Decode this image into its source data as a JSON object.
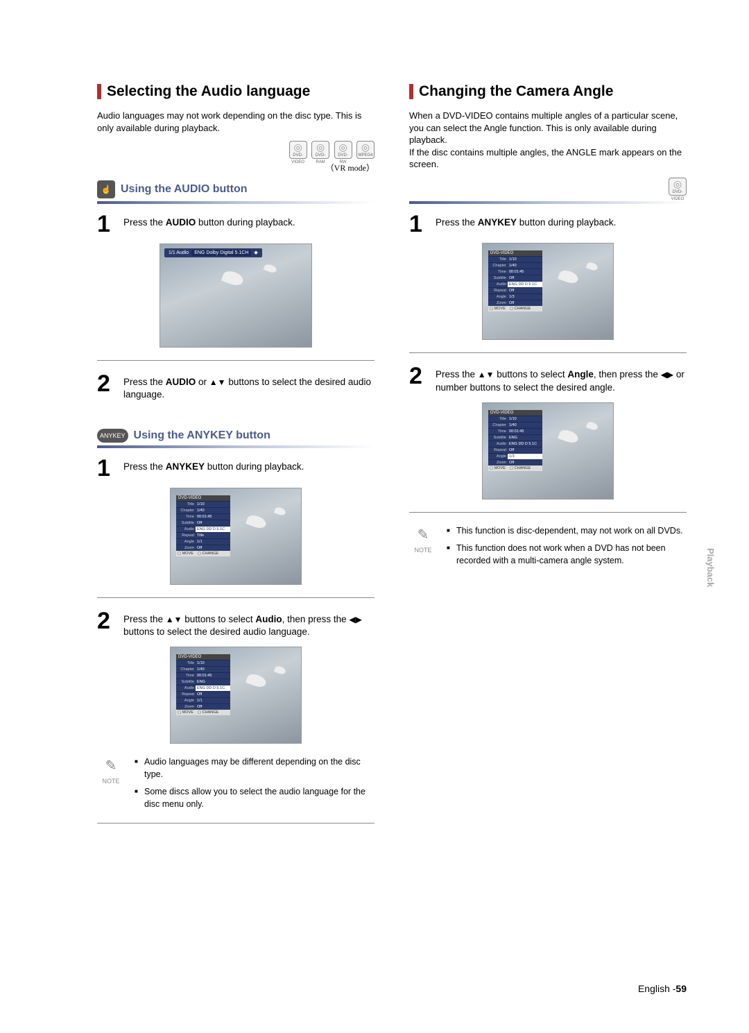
{
  "left": {
    "title": "Selecting the Audio language",
    "intro": "Audio languages may not work depending on the disc type. This is only available during playback.",
    "disc_icons": [
      "DVD-VIDEO",
      "DVD-RAM",
      "DVD-RW",
      "MPEG4"
    ],
    "vr_mode": "（VR mode）",
    "section1": {
      "badge_glyph": "☝",
      "heading": "Using the AUDIO button",
      "step1_pre": "Press the ",
      "step1_b": "AUDIO",
      "step1_post": " button during playback.",
      "osd": "ENG Dolby Digital 5.1CH",
      "osd_pre": "1/1 Audio",
      "step2_pre": "Press the ",
      "step2_b1": "AUDIO",
      "step2_mid": " or ",
      "step2_arrows": "▲▼",
      "step2_post": " buttons to select the desired audio language."
    },
    "section2": {
      "badge": "ANYKEY",
      "heading": "Using the ANYKEY button",
      "step1_pre": "Press the ",
      "step1_b": "ANYKEY",
      "step1_post": " button during playback.",
      "menu": {
        "title": "DVD-VIDEO",
        "rows": [
          {
            "lbl": "Title",
            "val": "1/10"
          },
          {
            "lbl": "Chapter",
            "val": "1/40"
          },
          {
            "lbl": "Time",
            "val": "00:01:45"
          },
          {
            "lbl": "Subtitle",
            "val": "Off"
          },
          {
            "lbl": "Audio",
            "val": "ENG DD D 5.1C",
            "sel": true
          },
          {
            "lbl": "Repeat",
            "val": "Title"
          },
          {
            "lbl": "Angle",
            "val": "1/1"
          },
          {
            "lbl": "Zoom",
            "val": "Off"
          }
        ],
        "footer_move": "MOVE",
        "footer_change": "CHANGE"
      },
      "step2_a": "Press the ",
      "step2_arrows1": "▲▼",
      "step2_b": " buttons to select ",
      "step2_bold": "Audio",
      "step2_c": ", then press the ",
      "step2_arrows2": "◀▶",
      "step2_d": " buttons to select the desired audio language.",
      "menu2": {
        "title": "DVD-VIDEO",
        "rows": [
          {
            "lbl": "Title",
            "val": "1/10"
          },
          {
            "lbl": "Chapter",
            "val": "1/40"
          },
          {
            "lbl": "Time",
            "val": "00:01:45"
          },
          {
            "lbl": "Subtitle",
            "val": "ENG"
          },
          {
            "lbl": "Audio",
            "val": "ENG DD D 5.1C",
            "sel": true
          },
          {
            "lbl": "Repeat",
            "val": "Off"
          },
          {
            "lbl": "Angle",
            "val": "1/1"
          },
          {
            "lbl": "Zoom",
            "val": "Off"
          }
        ],
        "footer_move": "MOVE",
        "footer_change": "CHANGE"
      }
    },
    "notes": [
      "Audio languages may be different depending on the disc type.",
      "Some discs allow you to select the audio language for the disc menu only."
    ]
  },
  "right": {
    "title": "Changing the Camera Angle",
    "intro": "When a DVD-VIDEO contains multiple angles of a particular scene, you can select the Angle function. This is only available during playback.\nIf the disc contains multiple angles, the ANGLE mark appears on the screen.",
    "disc_icon": "DVD-VIDEO",
    "step1_pre": "Press the ",
    "step1_b": "ANYKEY",
    "step1_post": " button during playback.",
    "menu": {
      "title": "DVD-VIDEO",
      "rows": [
        {
          "lbl": "Title",
          "val": "1/10"
        },
        {
          "lbl": "Chapter",
          "val": "1/40"
        },
        {
          "lbl": "Time",
          "val": "00:01:45"
        },
        {
          "lbl": "Subtitle",
          "val": "Off"
        },
        {
          "lbl": "Audio",
          "val": "ENG DD D 5.1C",
          "sel": true
        },
        {
          "lbl": "Repeat",
          "val": "Off"
        },
        {
          "lbl": "Angle",
          "val": "1/3"
        },
        {
          "lbl": "Zoom",
          "val": "Off"
        }
      ],
      "footer_move": "MOVE",
      "footer_change": "CHANGE"
    },
    "step2_a": "Press the ",
    "step2_arrows1": "▲▼",
    "step2_b": " buttons to select ",
    "step2_bold": "Angle",
    "step2_c": ", then press the ",
    "step2_arrows2": "◀▶",
    "step2_d": " or number buttons to select the desired angle.",
    "menu2": {
      "title": "DVD-VIDEO",
      "rows": [
        {
          "lbl": "Title",
          "val": "1/10"
        },
        {
          "lbl": "Chapter",
          "val": "1/40"
        },
        {
          "lbl": "Time",
          "val": "00:01:45"
        },
        {
          "lbl": "Subtitle",
          "val": "ENG"
        },
        {
          "lbl": "Audio",
          "val": "ENG DD D 5.1C"
        },
        {
          "lbl": "Repeat",
          "val": "Off"
        },
        {
          "lbl": "Angle",
          "val": "1/3",
          "sel": true
        },
        {
          "lbl": "Zoom",
          "val": "Off"
        }
      ],
      "footer_move": "MOVE",
      "footer_change": "CHANGE"
    },
    "notes": [
      "This function is disc-dependent, may not work on all DVDs.",
      "This function does not work when a DVD has not been recorded with a multi-camera angle system."
    ]
  },
  "note_label": "NOTE",
  "side_tab": "Playback",
  "page": {
    "lang": "English -",
    "num": "59"
  },
  "colors": {
    "accent": "#4a5b8d",
    "red": "#b03030"
  }
}
